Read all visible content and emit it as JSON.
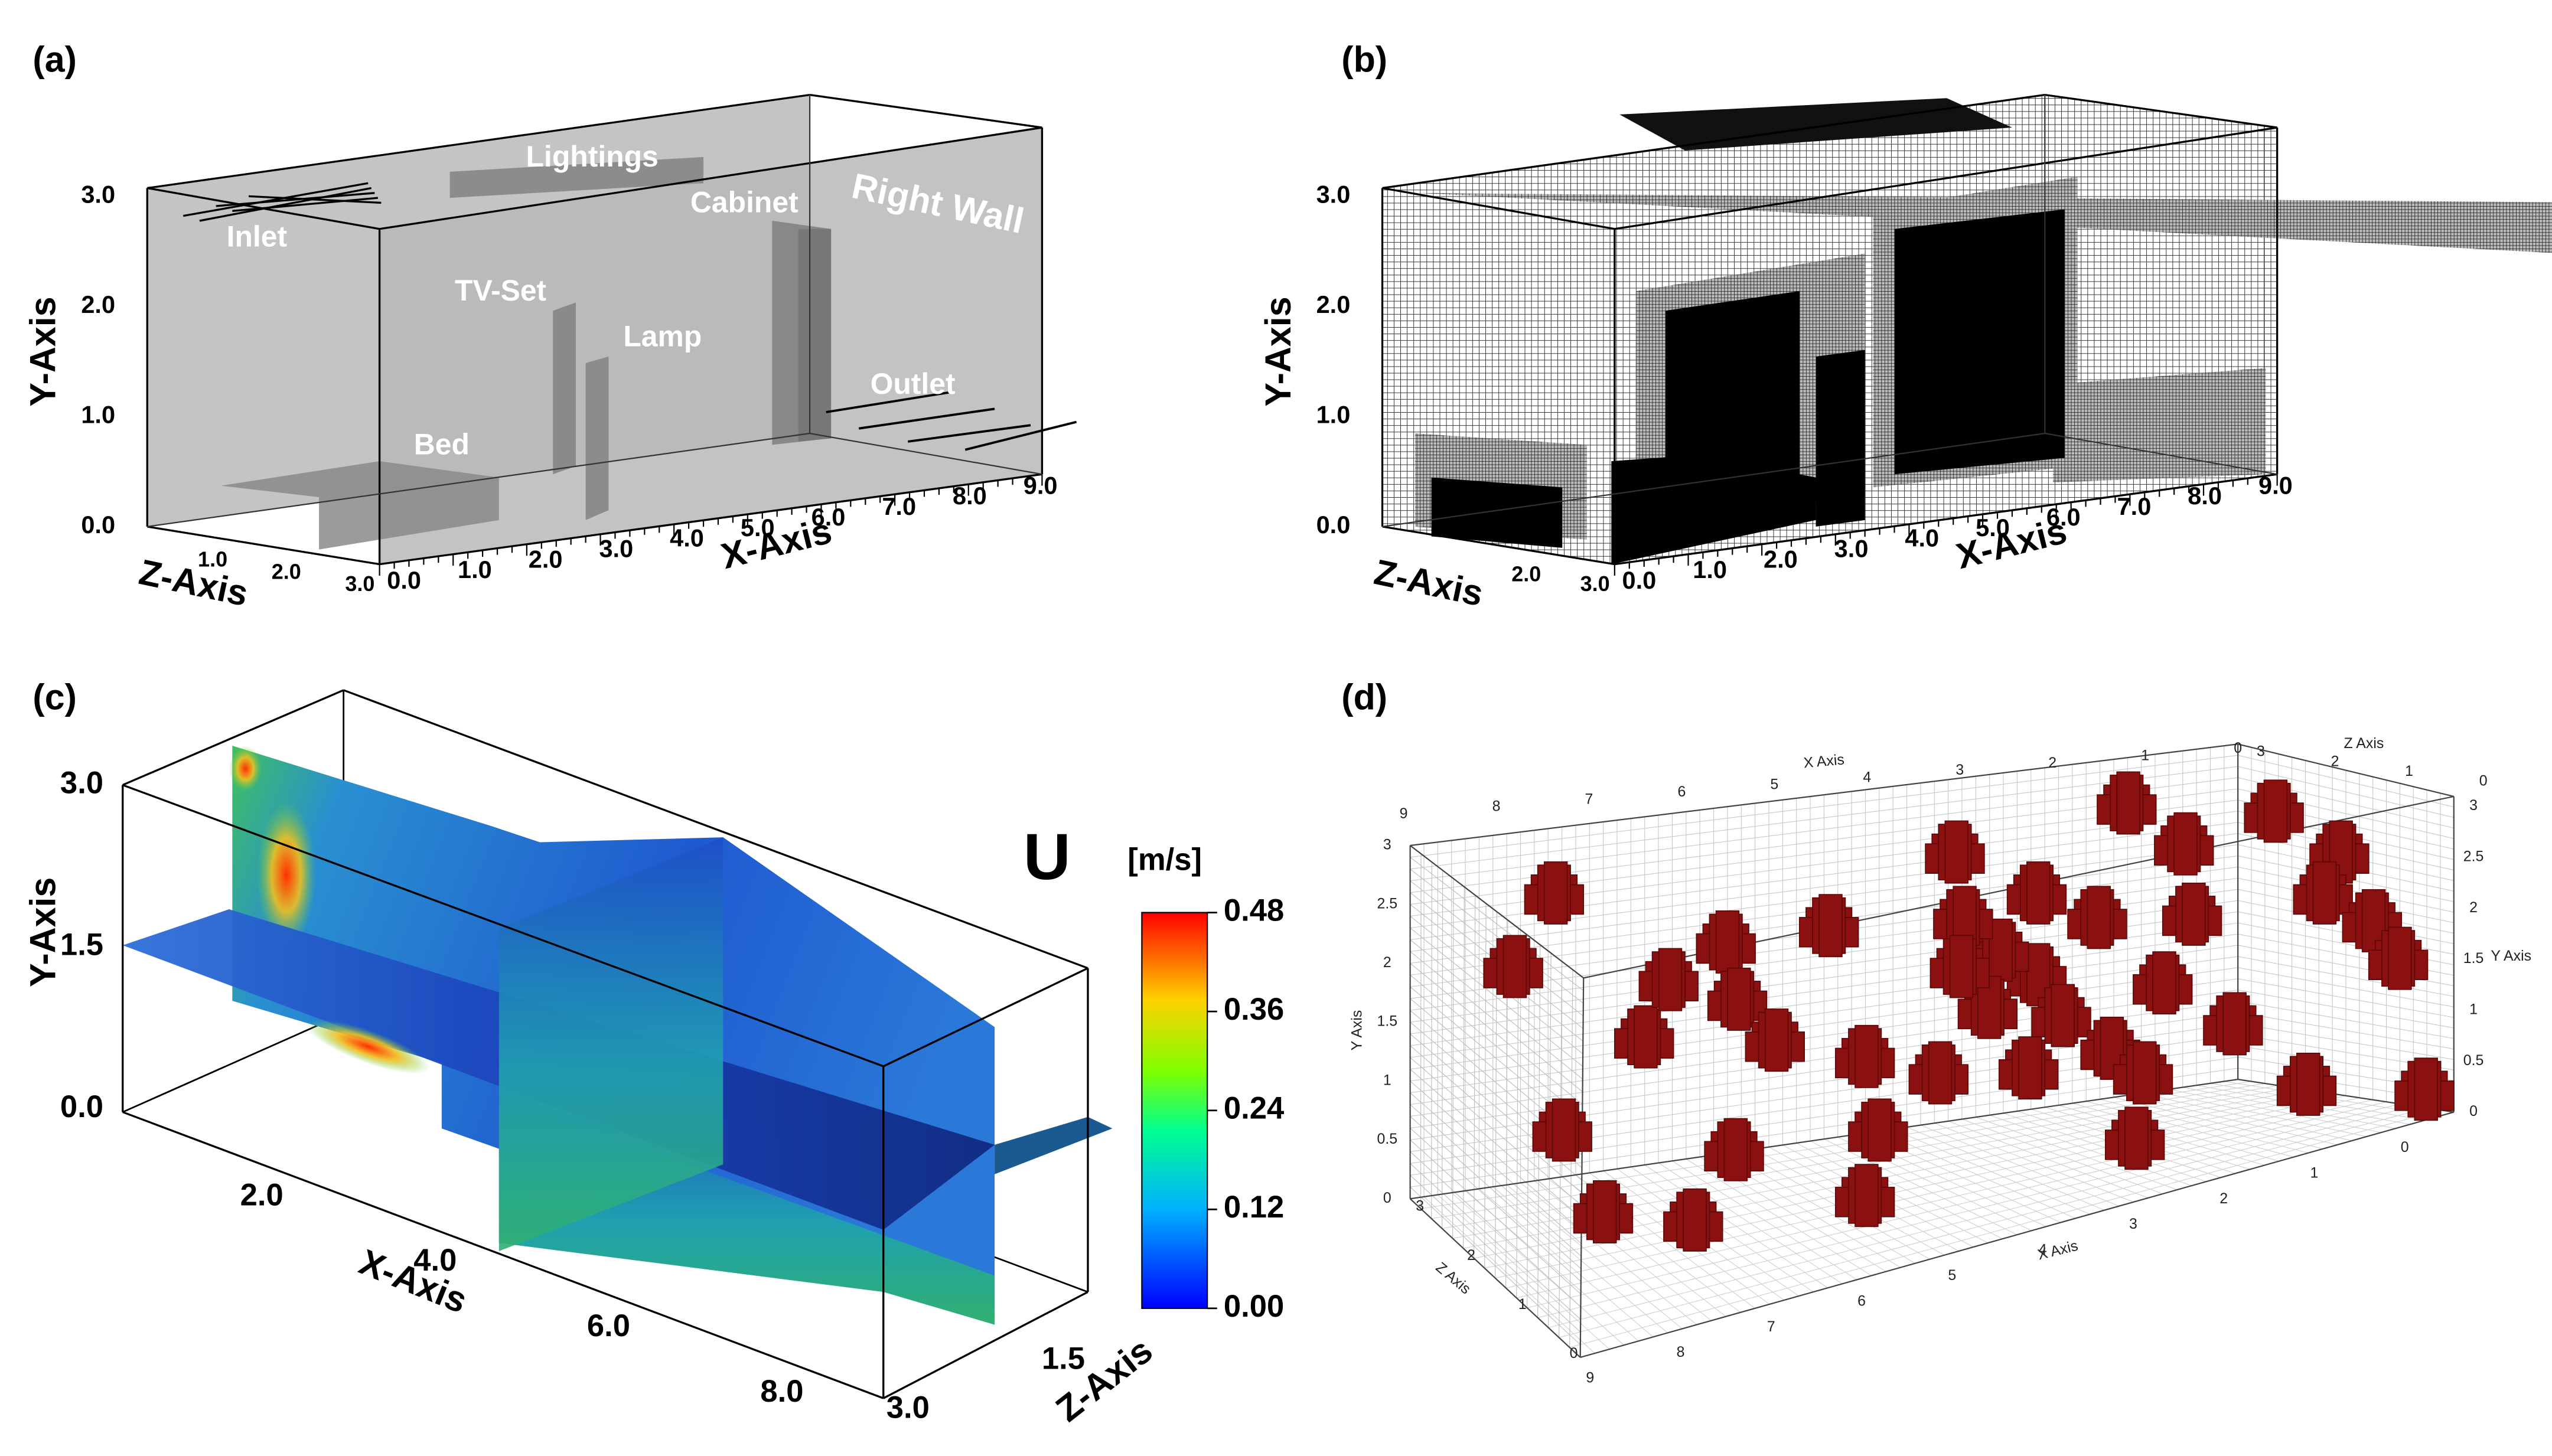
{
  "figure": {
    "panels": [
      {
        "label": "(a)",
        "annotations": [
          "Lightings",
          "Cabinet",
          "Right Wall",
          "Inlet",
          "TV-Set",
          "Lamp",
          "Outlet",
          "Bed"
        ],
        "x_axis": {
          "title": "X-Axis",
          "ticks": [
            "0.0",
            "1.0",
            "2.0",
            "3.0",
            "4.0",
            "5.0",
            "6.0",
            "7.0",
            "8.0",
            "9.0"
          ]
        },
        "y_axis": {
          "title": "Y-Axis",
          "ticks": [
            "0.0",
            "1.0",
            "2.0",
            "3.0"
          ]
        },
        "z_axis": {
          "title": "Z-Axis",
          "ticks": [
            "1.0",
            "2.0",
            "3.0"
          ]
        }
      },
      {
        "label": "(b)",
        "x_axis": {
          "title": "X-Axis",
          "ticks": [
            "0.0",
            "1.0",
            "2.0",
            "3.0",
            "4.0",
            "5.0",
            "6.0",
            "7.0",
            "8.0",
            "9.0"
          ]
        },
        "y_axis": {
          "title": "Y-Axis",
          "ticks": [
            "0.0",
            "1.0",
            "2.0",
            "3.0"
          ]
        },
        "z_axis": {
          "title": "Z-Axis",
          "ticks": [
            "2.0",
            "3.0"
          ]
        }
      },
      {
        "label": "(c)",
        "x_axis": {
          "title": "X-Axis",
          "ticks": [
            "2.0",
            "4.0",
            "6.0",
            "8.0"
          ]
        },
        "y_axis": {
          "title": "Y-Axis",
          "ticks": [
            "0.0",
            "1.5",
            "3.0"
          ]
        },
        "z_axis": {
          "title": "Z-Axis",
          "ticks": [
            "1.5",
            "3.0"
          ]
        },
        "colorbar": {
          "symbol": "U",
          "unit": "[m/s]",
          "ticks": [
            {
              "value": 0,
              "label": "0.00"
            },
            0.12,
            0.24,
            0.36,
            0.48
          ]
        }
      },
      {
        "label": "(d)",
        "x_axis": {
          "title": "X Axis",
          "ticks": [
            9,
            8,
            7,
            6,
            5,
            4,
            3,
            2,
            1,
            0
          ]
        },
        "y_axis": {
          "title": "Y Axis",
          "ticks": [
            0,
            0.5,
            1,
            1.5,
            2,
            2.5,
            3
          ]
        },
        "z_axis": {
          "title": "Z Axis",
          "ticks": [
            0,
            1,
            2,
            3
          ]
        }
      }
    ]
  }
}
